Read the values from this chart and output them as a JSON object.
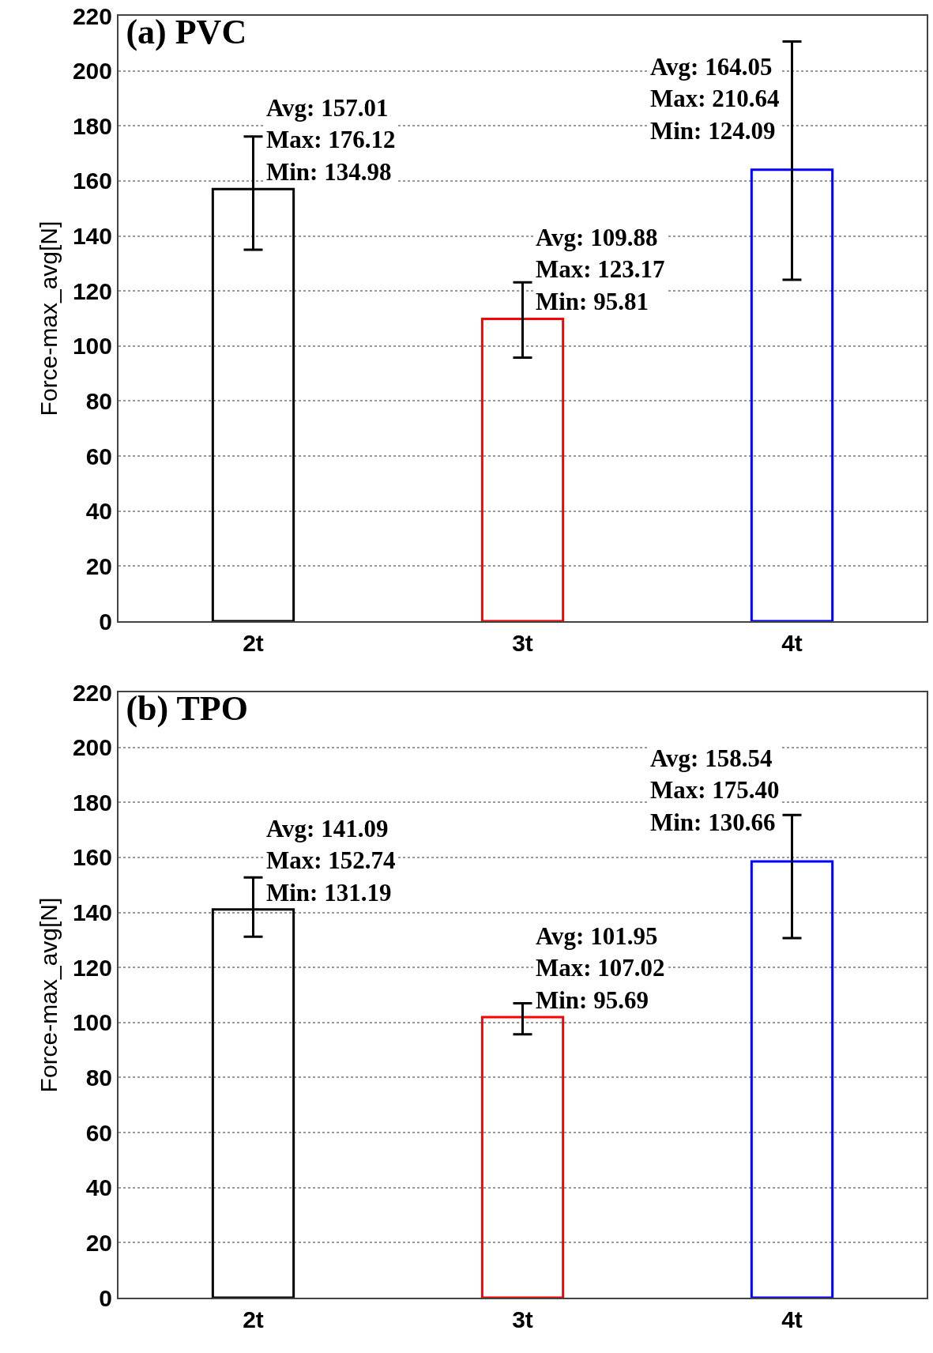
{
  "chart_data": [
    {
      "type": "bar",
      "title": "(a) PVC",
      "ylabel": "Force-max_avg[N]",
      "categories": [
        "2t",
        "3t",
        "4t"
      ],
      "values": [
        157.01,
        109.88,
        164.05
      ],
      "colors": [
        "#000000",
        "#ff0000",
        "#0000ff"
      ],
      "errors": [
        [
          134.98,
          176.12
        ],
        [
          95.81,
          123.17
        ],
        [
          124.09,
          210.64
        ]
      ],
      "annotations": [
        {
          "text": "Avg: 157.01\nMax: 176.12\nMin: 134.98",
          "x": "2t",
          "y": 157.01
        },
        {
          "text": "Avg: 109.88\nMax: 123.17\nMin: 95.81",
          "x": "3t",
          "y": 109.88
        },
        {
          "text": "Avg: 164.05\nMax: 210.64\nMin: 124.09",
          "x": "4t",
          "y": 164.05
        }
      ],
      "ylim": [
        0,
        220
      ],
      "yticks": [
        0,
        20,
        40,
        60,
        80,
        100,
        120,
        140,
        160,
        180,
        200,
        220
      ],
      "grid": "y"
    },
    {
      "type": "bar",
      "title": "(b) TPO",
      "ylabel": "Force-max_avg[N]",
      "categories": [
        "2t",
        "3t",
        "4t"
      ],
      "values": [
        141.09,
        101.95,
        158.54
      ],
      "colors": [
        "#000000",
        "#ff0000",
        "#0000ff"
      ],
      "errors": [
        [
          131.19,
          152.74
        ],
        [
          95.69,
          107.02
        ],
        [
          130.66,
          175.4
        ]
      ],
      "annotations": [
        {
          "text": "Avg: 141.09\nMax: 152.74\nMin: 131.19",
          "x": "2t",
          "y": 141.09
        },
        {
          "text": "Avg: 101.95\nMax: 107.02\nMin: 95.69",
          "x": "3t",
          "y": 101.95
        },
        {
          "text": "Avg: 158.54\nMax: 175.40\nMin: 130.66",
          "x": "4t",
          "y": 158.54
        }
      ],
      "ylim": [
        0,
        220
      ],
      "yticks": [
        0,
        20,
        40,
        60,
        80,
        100,
        120,
        140,
        160,
        180,
        200,
        220
      ],
      "grid": "y"
    }
  ]
}
